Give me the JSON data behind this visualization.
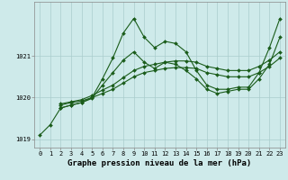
{
  "background_color": "#ceeaea",
  "grid_color": "#aacccc",
  "line_color": "#1a5c1a",
  "series": [
    {
      "x": [
        0,
        1,
        2,
        3,
        4,
        5,
        6,
        7,
        8,
        9,
        10,
        11,
        12,
        13,
        14,
        15,
        16,
        17,
        18,
        19,
        20,
        21,
        22,
        23
      ],
      "y": [
        1019.1,
        1019.35,
        1019.75,
        1019.82,
        1019.88,
        1020.0,
        1020.45,
        1020.95,
        1021.55,
        1021.9,
        1021.45,
        1021.2,
        1021.35,
        1021.3,
        1021.1,
        1020.65,
        1020.3,
        1020.2,
        1020.2,
        1020.25,
        1020.25,
        1020.6,
        1021.2,
        1021.9
      ]
    },
    {
      "x": [
        2,
        3,
        4,
        5,
        6,
        7,
        8,
        9,
        10,
        11,
        12,
        13,
        14,
        15,
        16,
        17,
        18,
        19,
        20,
        21,
        22,
        23
      ],
      "y": [
        1019.75,
        1019.82,
        1019.88,
        1019.98,
        1020.3,
        1020.6,
        1020.9,
        1021.1,
        1020.85,
        1020.7,
        1020.85,
        1020.8,
        1020.65,
        1020.45,
        1020.2,
        1020.1,
        1020.15,
        1020.2,
        1020.2,
        1020.45,
        1020.8,
        1021.45
      ]
    },
    {
      "x": [
        2,
        3,
        4,
        5,
        6,
        7,
        8,
        9,
        10,
        11,
        12,
        13,
        14,
        15,
        16,
        17,
        18,
        19,
        20,
        21,
        22,
        23
      ],
      "y": [
        1019.82,
        1019.88,
        1019.92,
        1020.0,
        1020.1,
        1020.2,
        1020.35,
        1020.5,
        1020.6,
        1020.65,
        1020.7,
        1020.72,
        1020.72,
        1020.7,
        1020.6,
        1020.55,
        1020.5,
        1020.5,
        1020.5,
        1020.6,
        1020.75,
        1020.95
      ]
    },
    {
      "x": [
        2,
        3,
        4,
        5,
        6,
        7,
        8,
        9,
        10,
        11,
        12,
        13,
        14,
        15,
        16,
        17,
        18,
        19,
        20,
        21,
        22,
        23
      ],
      "y": [
        1019.85,
        1019.9,
        1019.95,
        1020.05,
        1020.18,
        1020.3,
        1020.48,
        1020.65,
        1020.75,
        1020.8,
        1020.85,
        1020.88,
        1020.88,
        1020.85,
        1020.75,
        1020.7,
        1020.65,
        1020.65,
        1020.65,
        1020.75,
        1020.9,
        1021.1
      ]
    }
  ],
  "ylim": [
    1018.8,
    1022.3
  ],
  "yticks": [
    1019,
    1020,
    1021
  ],
  "xlim": [
    -0.5,
    23.5
  ],
  "xticks": [
    0,
    1,
    2,
    3,
    4,
    5,
    6,
    7,
    8,
    9,
    10,
    11,
    12,
    13,
    14,
    15,
    16,
    17,
    18,
    19,
    20,
    21,
    22,
    23
  ],
  "xlabel": "Graphe pression niveau de la mer (hPa)",
  "xlabel_fontsize": 6.5,
  "tick_fontsize": 5.0,
  "marker": "D",
  "markersize": 2.0,
  "linewidth": 0.8
}
